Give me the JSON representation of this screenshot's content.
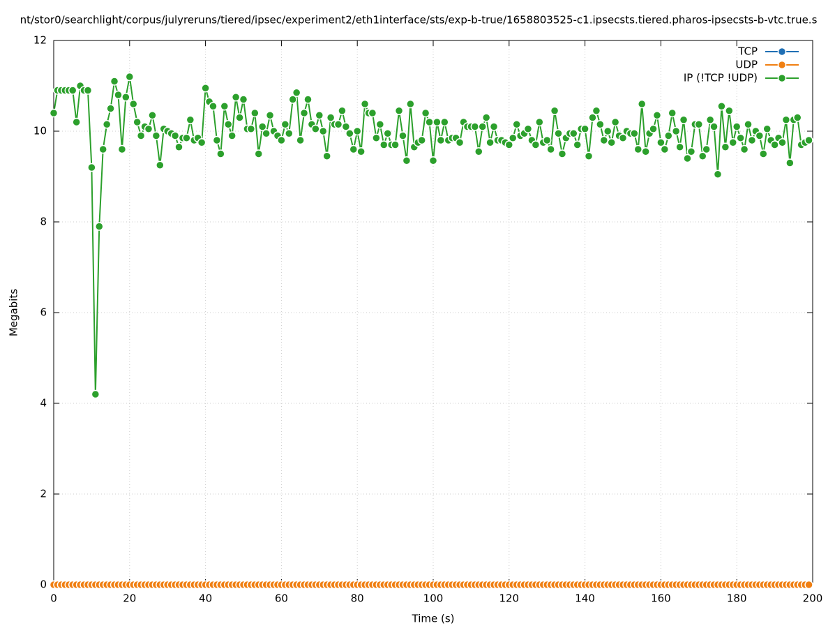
{
  "chart_data": {
    "type": "line",
    "title": "nt/stor0/searchlight/corpus/julyreruns/tiered/ipsec/experiment2/eth1interface/sts/exp-b-true/1658803525-c1.ipsecsts.tiered.pharos-ipsecsts-b-vtc.true.s",
    "xlabel": "Time (s)",
    "ylabel": "Megabits",
    "x": [
      0,
      1,
      2,
      3,
      4,
      5,
      6,
      7,
      8,
      9,
      10,
      11,
      12,
      13,
      14,
      15,
      16,
      17,
      18,
      19,
      20,
      21,
      22,
      23,
      24,
      25,
      26,
      27,
      28,
      29,
      30,
      31,
      32,
      33,
      34,
      35,
      36,
      37,
      38,
      39,
      40,
      41,
      42,
      43,
      44,
      45,
      46,
      47,
      48,
      49,
      50,
      51,
      52,
      53,
      54,
      55,
      56,
      57,
      58,
      59,
      60,
      61,
      62,
      63,
      64,
      65,
      66,
      67,
      68,
      69,
      70,
      71,
      72,
      73,
      74,
      75,
      76,
      77,
      78,
      79,
      80,
      81,
      82,
      83,
      84,
      85,
      86,
      87,
      88,
      89,
      90,
      91,
      92,
      93,
      94,
      95,
      96,
      97,
      98,
      99,
      100,
      101,
      102,
      103,
      104,
      105,
      106,
      107,
      108,
      109,
      110,
      111,
      112,
      113,
      114,
      115,
      116,
      117,
      118,
      119,
      120,
      121,
      122,
      123,
      124,
      125,
      126,
      127,
      128,
      129,
      130,
      131,
      132,
      133,
      134,
      135,
      136,
      137,
      138,
      139,
      140,
      141,
      142,
      143,
      144,
      145,
      146,
      147,
      148,
      149,
      150,
      151,
      152,
      153,
      154,
      155,
      156,
      157,
      158,
      159,
      160,
      161,
      162,
      163,
      164,
      165,
      166,
      167,
      168,
      169,
      170,
      171,
      172,
      173,
      174,
      175,
      176,
      177,
      178,
      179,
      180,
      181,
      182,
      183,
      184,
      185,
      186,
      187,
      188,
      189,
      190,
      191,
      192,
      193,
      194,
      195,
      196,
      197,
      198,
      199
    ],
    "series": [
      {
        "name": "TCP",
        "color": "#1f6fb4",
        "values": [
          0,
          0,
          0,
          0,
          0,
          0,
          0,
          0,
          0,
          0,
          0,
          0,
          0,
          0,
          0,
          0,
          0,
          0,
          0,
          0,
          0,
          0,
          0,
          0,
          0,
          0,
          0,
          0,
          0,
          0,
          0,
          0,
          0,
          0,
          0,
          0,
          0,
          0,
          0,
          0,
          0,
          0,
          0,
          0,
          0,
          0,
          0,
          0,
          0,
          0,
          0,
          0,
          0,
          0,
          0,
          0,
          0,
          0,
          0,
          0,
          0,
          0,
          0,
          0,
          0,
          0,
          0,
          0,
          0,
          0,
          0,
          0,
          0,
          0,
          0,
          0,
          0,
          0,
          0,
          0,
          0,
          0,
          0,
          0,
          0,
          0,
          0,
          0,
          0,
          0,
          0,
          0,
          0,
          0,
          0,
          0,
          0,
          0,
          0,
          0,
          0,
          0,
          0,
          0,
          0,
          0,
          0,
          0,
          0,
          0,
          0,
          0,
          0,
          0,
          0,
          0,
          0,
          0,
          0,
          0,
          0,
          0,
          0,
          0,
          0,
          0,
          0,
          0,
          0,
          0,
          0,
          0,
          0,
          0,
          0,
          0,
          0,
          0,
          0,
          0,
          0,
          0,
          0,
          0,
          0,
          0,
          0,
          0,
          0,
          0,
          0,
          0,
          0,
          0,
          0,
          0,
          0,
          0,
          0,
          0,
          0,
          0,
          0,
          0,
          0,
          0,
          0,
          0,
          0,
          0,
          0,
          0,
          0,
          0,
          0,
          0,
          0,
          0,
          0,
          0,
          0,
          0,
          0,
          0,
          0,
          0,
          0,
          0,
          0,
          0,
          0,
          0,
          0,
          0,
          0,
          0,
          0,
          0,
          0,
          0
        ]
      },
      {
        "name": "UDP",
        "color": "#f07f12",
        "values": [
          0,
          0,
          0,
          0,
          0,
          0,
          0,
          0,
          0,
          0,
          0,
          0,
          0,
          0,
          0,
          0,
          0,
          0,
          0,
          0,
          0,
          0,
          0,
          0,
          0,
          0,
          0,
          0,
          0,
          0,
          0,
          0,
          0,
          0,
          0,
          0,
          0,
          0,
          0,
          0,
          0,
          0,
          0,
          0,
          0,
          0,
          0,
          0,
          0,
          0,
          0,
          0,
          0,
          0,
          0,
          0,
          0,
          0,
          0,
          0,
          0,
          0,
          0,
          0,
          0,
          0,
          0,
          0,
          0,
          0,
          0,
          0,
          0,
          0,
          0,
          0,
          0,
          0,
          0,
          0,
          0,
          0,
          0,
          0,
          0,
          0,
          0,
          0,
          0,
          0,
          0,
          0,
          0,
          0,
          0,
          0,
          0,
          0,
          0,
          0,
          0,
          0,
          0,
          0,
          0,
          0,
          0,
          0,
          0,
          0,
          0,
          0,
          0,
          0,
          0,
          0,
          0,
          0,
          0,
          0,
          0,
          0,
          0,
          0,
          0,
          0,
          0,
          0,
          0,
          0,
          0,
          0,
          0,
          0,
          0,
          0,
          0,
          0,
          0,
          0,
          0,
          0,
          0,
          0,
          0,
          0,
          0,
          0,
          0,
          0,
          0,
          0,
          0,
          0,
          0,
          0,
          0,
          0,
          0,
          0,
          0,
          0,
          0,
          0,
          0,
          0,
          0,
          0,
          0,
          0,
          0,
          0,
          0,
          0,
          0,
          0,
          0,
          0,
          0,
          0,
          0,
          0,
          0,
          0,
          0,
          0,
          0,
          0,
          0,
          0,
          0,
          0,
          0,
          0,
          0,
          0,
          0,
          0,
          0,
          0
        ]
      },
      {
        "name": "IP (!TCP  !UDP)",
        "color": "#2ca02c",
        "values": [
          10.4,
          10.9,
          10.9,
          10.9,
          10.9,
          10.9,
          10.2,
          11.0,
          10.9,
          10.9,
          9.2,
          4.2,
          7.9,
          9.6,
          10.15,
          10.5,
          11.1,
          10.8,
          9.6,
          10.75,
          11.2,
          10.6,
          10.2,
          9.9,
          10.1,
          10.05,
          10.35,
          9.9,
          9.25,
          10.05,
          10.0,
          9.95,
          9.9,
          9.65,
          9.85,
          9.85,
          10.25,
          9.8,
          9.85,
          9.75,
          10.95,
          10.65,
          10.55,
          9.8,
          9.5,
          10.55,
          10.15,
          9.9,
          10.75,
          10.3,
          10.7,
          10.05,
          10.05,
          10.4,
          9.5,
          10.1,
          9.95,
          10.35,
          10.0,
          9.9,
          9.8,
          10.15,
          9.95,
          10.7,
          10.85,
          9.8,
          10.4,
          10.7,
          10.15,
          10.05,
          10.35,
          10.0,
          9.45,
          10.3,
          10.15,
          10.15,
          10.45,
          10.1,
          9.95,
          9.6,
          10.0,
          9.55,
          10.6,
          10.4,
          10.4,
          9.85,
          10.15,
          9.7,
          9.95,
          9.7,
          9.7,
          10.45,
          9.9,
          9.35,
          10.6,
          9.65,
          9.75,
          9.8,
          10.4,
          10.2,
          9.35,
          10.2,
          9.8,
          10.2,
          9.8,
          9.85,
          9.85,
          9.75,
          10.2,
          10.1,
          10.1,
          10.1,
          9.55,
          10.1,
          10.3,
          9.75,
          10.1,
          9.8,
          9.8,
          9.75,
          9.7,
          9.85,
          10.15,
          9.9,
          9.95,
          10.05,
          9.8,
          9.7,
          10.2,
          9.75,
          9.8,
          9.6,
          10.45,
          9.95,
          9.5,
          9.85,
          9.95,
          9.95,
          9.7,
          10.05,
          10.05,
          9.45,
          10.3,
          10.45,
          10.15,
          9.8,
          10.0,
          9.75,
          10.2,
          9.9,
          9.85,
          10.0,
          9.95,
          9.95,
          9.6,
          10.6,
          9.55,
          9.95,
          10.05,
          10.35,
          9.75,
          9.6,
          9.9,
          10.4,
          10.0,
          9.65,
          10.25,
          9.4,
          9.55,
          10.15,
          10.15,
          9.45,
          9.6,
          10.25,
          10.1,
          9.05,
          10.55,
          9.65,
          10.45,
          9.75,
          10.1,
          9.85,
          9.6,
          10.15,
          9.8,
          10.0,
          9.9,
          9.5,
          10.05,
          9.8,
          9.7,
          9.85,
          9.75,
          10.25,
          9.3,
          10.25,
          10.3,
          9.7,
          9.75,
          9.8
        ]
      }
    ],
    "xlim": [
      0,
      200
    ],
    "xticks": [
      0,
      20,
      40,
      60,
      80,
      100,
      120,
      140,
      160,
      180,
      200
    ],
    "ylim": [
      0,
      12
    ],
    "yticks": [
      0,
      2,
      4,
      6,
      8,
      10,
      12
    ],
    "grid": true,
    "legend": "top-right"
  }
}
